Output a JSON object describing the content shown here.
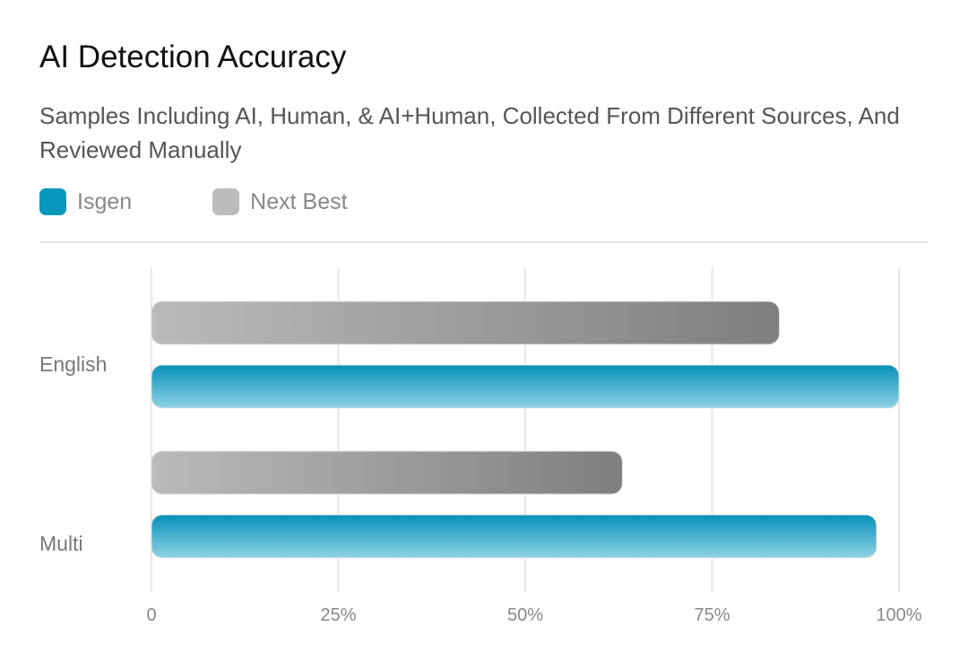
{
  "chart_data": {
    "type": "bar",
    "orientation": "horizontal",
    "title": "AI Detection Accuracy",
    "subtitle": "Samples Including AI, Human, & AI+Human, Collected From Different Sources, And Reviewed Manually",
    "categories": [
      "English",
      "Multi"
    ],
    "series": [
      {
        "name": "Next Best",
        "values": [
          84,
          63
        ],
        "color": "#9e9e9e"
      },
      {
        "name": "Isgen",
        "values": [
          100,
          97
        ],
        "color": "#0a93bb"
      }
    ],
    "xlim": [
      0,
      100
    ],
    "x_ticks": [
      "0",
      "25%",
      "50%",
      "75%",
      "100%"
    ],
    "x_tick_values": [
      0,
      25,
      50,
      75,
      100
    ],
    "grid": true,
    "legend_placement": "top-left",
    "legend": [
      {
        "label": "Isgen",
        "color": "#0a97bd"
      },
      {
        "label": "Next Best",
        "color": "#bcbcbc"
      }
    ]
  }
}
